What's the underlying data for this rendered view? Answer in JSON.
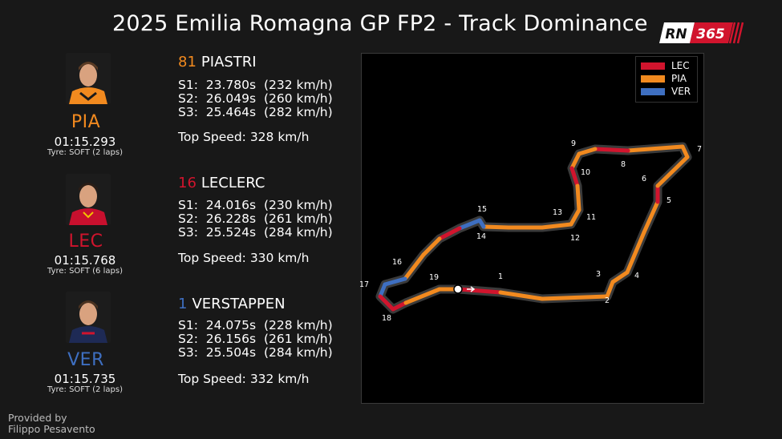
{
  "title": "2025 Emilia Romagna GP FP2 - Track Dominance",
  "logo": {
    "left": "RN",
    "right": "365"
  },
  "colors": {
    "PIA": "#f28a1f",
    "LEC": "#d1142d",
    "VER": "#3e6fc1",
    "track": "#3a3a3a"
  },
  "drivers": [
    {
      "code": "PIA",
      "number": "81",
      "name": "PIASTRI",
      "lap_time": "01:15.293",
      "tyre": "Tyre: SOFT (2 laps)",
      "sectors": [
        "S1:  23.780s  (232 km/h)",
        "S2:  26.049s  (260 km/h)",
        "S3:  25.464s  (282 km/h)"
      ],
      "top_speed": "Top Speed: 328 km/h"
    },
    {
      "code": "LEC",
      "number": "16",
      "name": "LECLERC",
      "lap_time": "01:15.768",
      "tyre": "Tyre: SOFT (6 laps)",
      "sectors": [
        "S1:  24.016s  (230 km/h)",
        "S2:  26.228s  (261 km/h)",
        "S3:  25.524s  (284 km/h)"
      ],
      "top_speed": "Top Speed: 330 km/h"
    },
    {
      "code": "VER",
      "number": "1",
      "name": "VERSTAPPEN",
      "lap_time": "01:15.735",
      "tyre": "Tyre: SOFT (2 laps)",
      "sectors": [
        "S1:  24.075s  (228 km/h)",
        "S2:  26.156s  (261 km/h)",
        "S3:  25.504s  (284 km/h)"
      ],
      "top_speed": "Top Speed: 332 km/h"
    }
  ],
  "credit": [
    "Provided by",
    "Filippo Pesavento"
  ],
  "chart_data": {
    "type": "track-map",
    "legend": [
      "LEC",
      "PIA",
      "VER"
    ],
    "corners": [
      "1",
      "2",
      "3",
      "4",
      "5",
      "6",
      "7",
      "8",
      "9",
      "10",
      "11",
      "12",
      "13",
      "14",
      "15",
      "16",
      "17",
      "18",
      "19"
    ],
    "segment_leaders": [
      "LEC",
      "PIA",
      "PIA",
      "PIA",
      "PIA",
      "PIA",
      "PIA",
      "LEC",
      "PIA",
      "PIA",
      "PIA",
      "LEC",
      "PIA",
      "PIA",
      "LEC",
      "PIA",
      "PIA",
      "PIA",
      "PIA",
      "PIA",
      "VER",
      "VER",
      "LEC",
      "PIA",
      "PIA",
      "VER",
      "VER",
      "LEC",
      "LEC",
      "PIA",
      "PIA"
    ]
  }
}
